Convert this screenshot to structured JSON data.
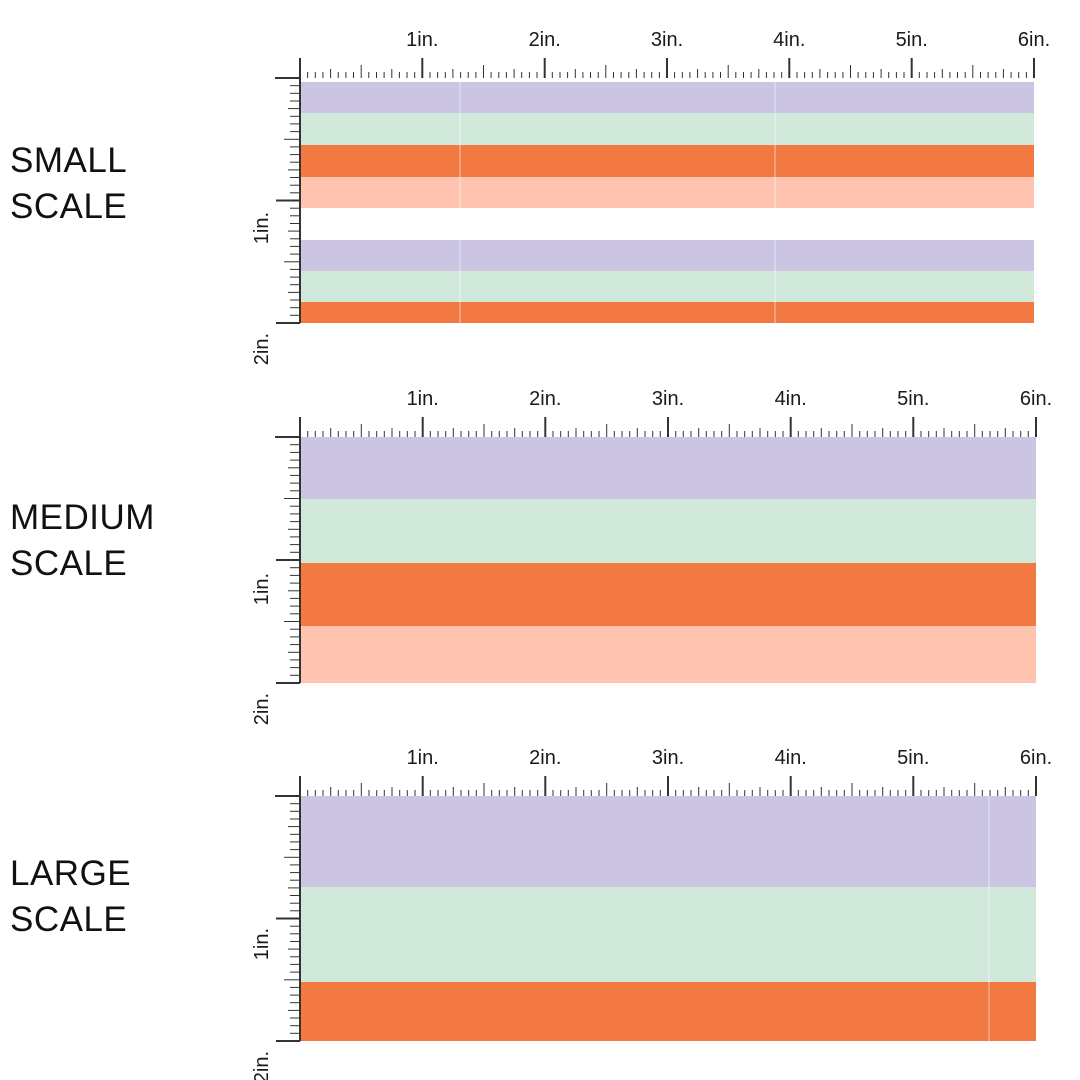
{
  "colors": {
    "lavender": "#cbc4e2",
    "mint": "#d0e9da",
    "orange": "#f37942",
    "peach": "#fec4b0",
    "ruler": "#333333"
  },
  "ruler_labels": [
    "1in.",
    "2in.",
    "3in.",
    "4in.",
    "5in.",
    "6in."
  ],
  "vertical_labels": [
    "1in.",
    "2in."
  ],
  "sections": [
    {
      "title_line1": "SMALL",
      "title_line2": "SCALE",
      "stripe_colors": [
        "lavender",
        "mint",
        "orange",
        "peach",
        "white",
        "lavender",
        "mint",
        "orange"
      ]
    },
    {
      "title_line1": "MEDIUM",
      "title_line2": "SCALE",
      "stripe_colors": [
        "lavender",
        "mint",
        "orange",
        "peach"
      ]
    },
    {
      "title_line1": "LARGE",
      "title_line2": "SCALE",
      "stripe_colors": [
        "lavender",
        "mint",
        "orange"
      ]
    }
  ]
}
